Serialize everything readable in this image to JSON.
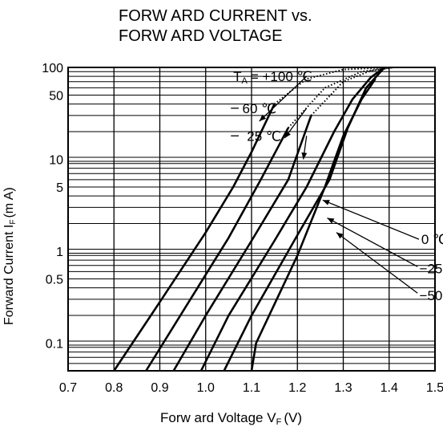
{
  "chart_data": {
    "type": "line",
    "title_line1": "FORW ARD CURRENT vs.",
    "title_line2": "FORW ARD VOLTAGE",
    "xlabel": "Forw ard Voltage V",
    "xlabel_sub": "F",
    "xlabel_unit": "(V)",
    "ylabel": "Forward Current I",
    "ylabel_sub": "F",
    "ylabel_unit": "(m A)",
    "x_scale": "linear",
    "y_scale": "log",
    "xlim": [
      0.7,
      1.5
    ],
    "ylim": [
      0.05,
      100
    ],
    "x_ticks": [
      "0.7",
      "0.8",
      "0.9",
      "1.0",
      "1.1",
      "1.2",
      "1.3",
      "1.4",
      "1.5"
    ],
    "y_tick_labels": [
      {
        "value": 100,
        "label": "100"
      },
      {
        "value": 50,
        "label": "50"
      },
      {
        "value": 10,
        "label": "10"
      },
      {
        "value": 5,
        "label": "5"
      },
      {
        "value": 1,
        "label": "1"
      },
      {
        "value": 0.5,
        "label": "0.5"
      },
      {
        "value": 0.1,
        "label": "0.1"
      }
    ],
    "grid": true,
    "series": [
      {
        "name": "T = +100 °C",
        "x": [
          0.8,
          0.9,
          1.0,
          1.06,
          1.1,
          1.15
        ],
        "y": [
          0.05,
          0.28,
          1.6,
          5.0,
          12.0,
          40.0
        ],
        "dotted_x": [
          1.15,
          1.22,
          1.3,
          1.4
        ],
        "dotted_y": [
          40.0,
          75.0,
          95.0,
          100.0
        ]
      },
      {
        "name": "60 °C",
        "x": [
          0.87,
          0.95,
          1.05,
          1.12,
          1.18
        ],
        "y": [
          0.05,
          0.22,
          1.4,
          6.0,
          22.0
        ],
        "dotted_x": [
          1.18,
          1.26,
          1.34,
          1.41
        ],
        "dotted_y": [
          22.0,
          60.0,
          90.0,
          100.0
        ]
      },
      {
        "name": "25 °C",
        "x": [
          0.93,
          1.0,
          1.1,
          1.18,
          1.23
        ],
        "y": [
          0.05,
          0.2,
          1.3,
          6.0,
          30.0
        ],
        "dotted_x": [
          1.23,
          1.3,
          1.36,
          1.41
        ],
        "dotted_y": [
          30.0,
          70.0,
          92.0,
          100.0
        ]
      },
      {
        "name": "0 °C",
        "x": [
          0.99,
          1.05,
          1.15,
          1.22,
          1.28,
          1.32,
          1.36,
          1.39
        ],
        "y": [
          0.05,
          0.2,
          1.3,
          5.0,
          20.0,
          45.0,
          78.0,
          100.0
        ]
      },
      {
        "name": "-25 °C",
        "x": [
          1.04,
          1.1,
          1.2,
          1.27,
          1.31,
          1.35,
          1.39
        ],
        "y": [
          0.05,
          0.2,
          1.5,
          6.0,
          22.0,
          60.0,
          100.0
        ]
      },
      {
        "name": "-50 °C",
        "x": [
          1.1,
          1.11,
          1.2,
          1.26,
          1.3,
          1.34,
          1.37
        ],
        "y": [
          0.05,
          0.1,
          0.9,
          5.0,
          18.0,
          45.0,
          75.0
        ]
      }
    ],
    "annotations": [
      {
        "main": "T",
        "sub": "A",
        "rest": "= +100 ℃",
        "x": 1.06,
        "y": 80
      },
      {
        "main": "60 ℃",
        "x": 1.08,
        "y": 36
      },
      {
        "main": "25 ℃",
        "x": 1.09,
        "y": 18
      },
      {
        "main": "0 ℃",
        "x": 1.47,
        "y": 1.35
      },
      {
        "main": "−25 ℃",
        "x": 1.466,
        "y": 0.65
      },
      {
        "main": "−50 ℃",
        "x": 1.466,
        "y": 0.33
      }
    ]
  }
}
